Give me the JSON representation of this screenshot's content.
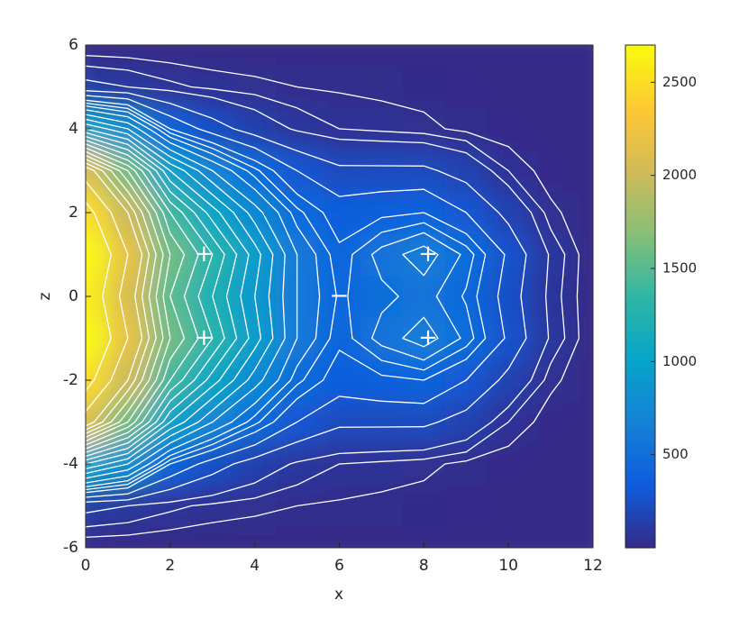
{
  "chart_data": {
    "type": "heatmap",
    "xlabel": "x",
    "ylabel": "z",
    "x": [
      0,
      1,
      2,
      3,
      4,
      5,
      6,
      7,
      8,
      9,
      10,
      11,
      12
    ],
    "y": [
      -6,
      -5,
      -4,
      -3,
      -2,
      -1,
      0,
      1,
      2,
      3,
      4,
      5,
      6
    ],
    "z": [
      [
        0,
        0,
        0,
        0,
        0,
        0,
        0,
        0,
        0,
        0,
        0,
        0,
        0
      ],
      [
        120,
        100,
        70,
        50,
        40,
        30,
        25,
        20,
        15,
        10,
        5,
        0,
        0
      ],
      [
        1000,
        800,
        400,
        250,
        150,
        90,
        60,
        50,
        40,
        20,
        8,
        0,
        0
      ],
      [
        2100,
        1600,
        1000,
        700,
        480,
        300,
        220,
        220,
        220,
        160,
        60,
        10,
        0
      ],
      [
        2500,
        2000,
        1400,
        1050,
        750,
        480,
        350,
        380,
        400,
        300,
        170,
        40,
        0
      ],
      [
        2700,
        2200,
        1600,
        1300,
        950,
        600,
        420,
        550,
        650,
        500,
        280,
        90,
        0
      ],
      [
        2600,
        2100,
        1500,
        1200,
        900,
        600,
        450,
        500,
        550,
        450,
        250,
        80,
        0
      ],
      [
        2700,
        2200,
        1600,
        1300,
        950,
        600,
        420,
        550,
        650,
        500,
        280,
        90,
        0
      ],
      [
        2500,
        2000,
        1400,
        1050,
        750,
        480,
        350,
        380,
        400,
        300,
        170,
        40,
        0
      ],
      [
        2100,
        1600,
        1000,
        700,
        480,
        300,
        220,
        220,
        220,
        160,
        60,
        10,
        0
      ],
      [
        1000,
        800,
        400,
        250,
        150,
        90,
        60,
        50,
        40,
        20,
        8,
        0,
        0
      ],
      [
        120,
        100,
        70,
        50,
        40,
        30,
        25,
        20,
        15,
        10,
        5,
        0,
        0
      ],
      [
        0,
        0,
        0,
        0,
        0,
        0,
        0,
        0,
        0,
        0,
        0,
        0,
        0
      ]
    ],
    "xlim": [
      0,
      12
    ],
    "xticks": [
      0,
      2,
      4,
      6,
      8,
      10,
      12
    ],
    "ylim": [
      -6,
      6
    ],
    "yticks": [
      -6,
      -4,
      -2,
      0,
      2,
      4,
      6
    ],
    "clim": [
      0,
      2700
    ],
    "cticks": [
      500,
      1000,
      1500,
      2000,
      2500
    ],
    "colormap": [
      "#352a87",
      "#0f5cdd",
      "#1481d6",
      "#06a4ca",
      "#2eb7a4",
      "#87bf77",
      "#d1bb59",
      "#fec832",
      "#f9fb0e"
    ],
    "contour_levels": [
      30,
      60,
      100,
      200,
      300,
      400,
      460,
      520,
      600,
      700,
      800,
      900,
      1000,
      1100,
      1200,
      1300,
      1400,
      1500,
      1600,
      1700,
      1800,
      1900,
      2000,
      2200,
      2400
    ],
    "contour_color": "#ffffff",
    "annotations": [
      {
        "text": "+",
        "x": 2.8,
        "y": 1
      },
      {
        "text": "+",
        "x": 2.8,
        "y": -1
      },
      {
        "text": "−",
        "x": 6,
        "y": 0
      },
      {
        "text": "+",
        "x": 8.1,
        "y": 1
      },
      {
        "text": "+",
        "x": 8.1,
        "y": -1
      }
    ]
  }
}
